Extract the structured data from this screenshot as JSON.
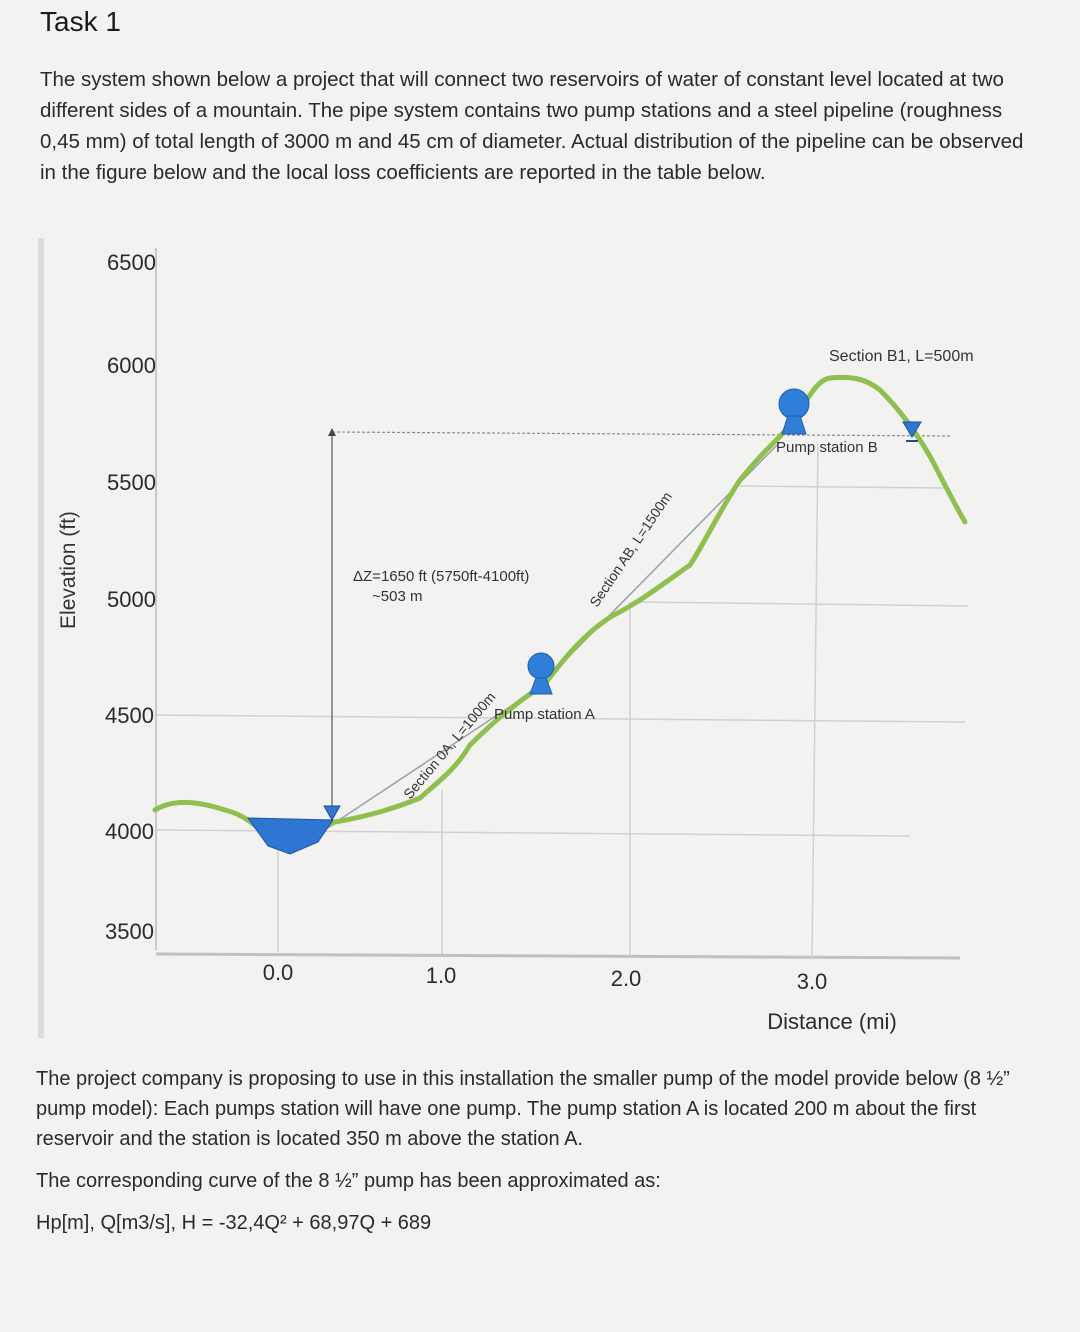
{
  "title": "Task 1",
  "intro": "The system shown below a project that will connect two reservoirs of water of constant level located at two different sides of a mountain. The pipe system contains two pump stations and a steel pipeline (roughness 0,45 mm) of total length of 3000 m and 45 cm of diameter. Actual distribution of the pipeline can be observed in the figure below and the local loss coefficients are reported in the table below.",
  "figure": {
    "y_axis_label": "Elevation (ft)",
    "x_axis_label": "Distance (mi)",
    "y_ticks": [
      "6500",
      "6000",
      "5500",
      "5000",
      "4500",
      "4000",
      "3500"
    ],
    "x_ticks": [
      "0.0",
      "1.0",
      "2.0",
      "3.0"
    ],
    "delta_z_line1": "ΔZ=1650 ft (5750ft-4100ft)",
    "delta_z_line2": "~503 m",
    "section_0a": "Section 0A, L=1000m",
    "section_ab": "Section AB, L=1500m",
    "section_b1": "Section B1, L=500m",
    "pump_a": "Pump station A",
    "pump_b": "Pump station B",
    "colors": {
      "terrain": "#8fbf4f",
      "reservoir": "#2f76d2",
      "pump": "#2f7fd8",
      "grid": "#cfcfcf"
    }
  },
  "bottom": {
    "p1": "The project company is proposing to use in this installation the smaller pump of the model provide below (8 ½” pump model): Each pumps station will have one pump. The pump station A is located 200 m about the first reservoir and the station is located 350 m above the station A.",
    "p2": "The corresponding curve of the 8 ½” pump has been approximated as:",
    "p3": "Hp[m], Q[m3/s], H = -32,4Q² + 68,97Q + 689"
  }
}
